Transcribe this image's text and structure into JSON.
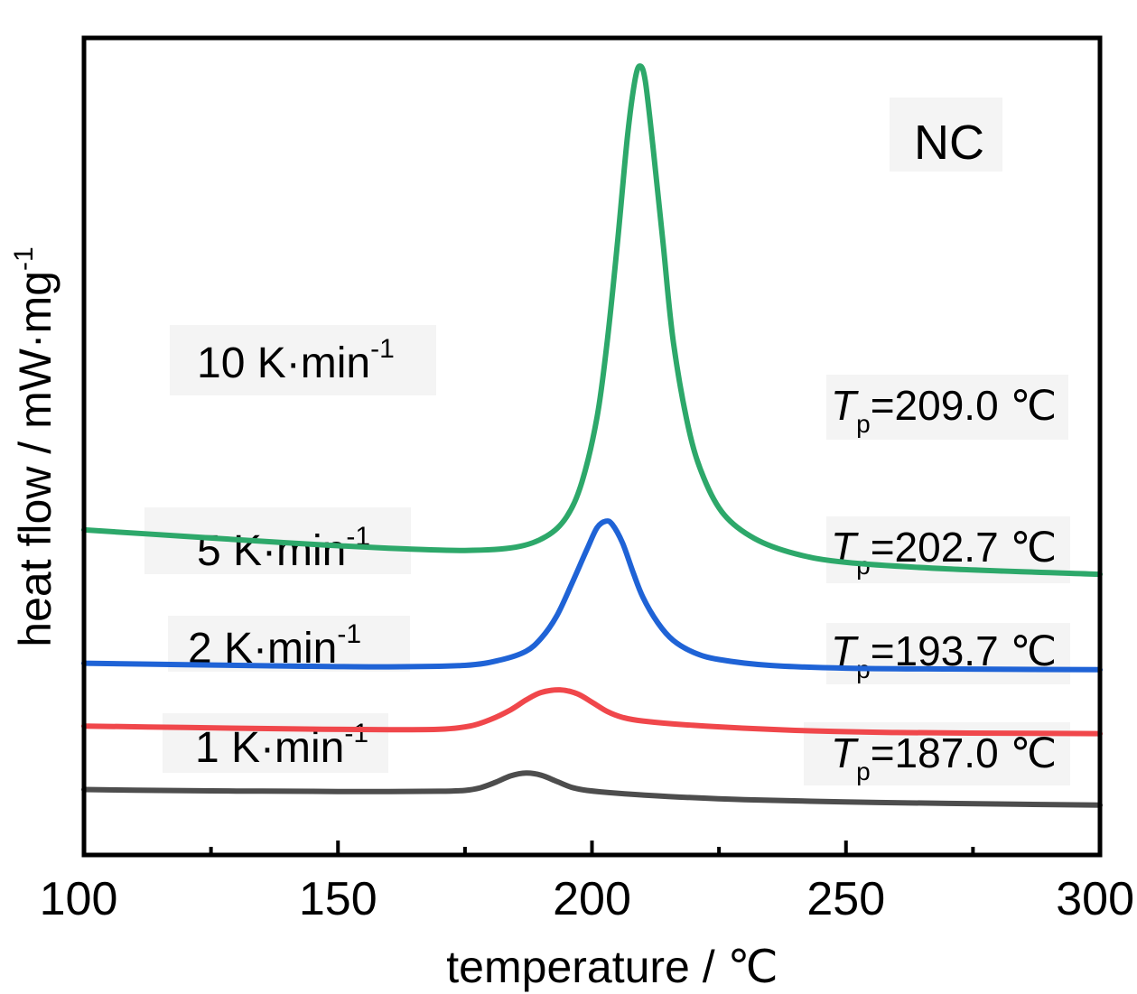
{
  "chart_data": {
    "type": "line",
    "panel_label": "NC",
    "xlabel": "temperature / ℃",
    "ylabel_main": "heat flow / mW·mg",
    "ylabel_sup": "-1",
    "xlim": [
      100,
      300
    ],
    "xticks": [
      "100",
      "150",
      "200",
      "250",
      "300"
    ],
    "x_minor_ticks": [
      125,
      175,
      225,
      275
    ],
    "y_ticks_shown": false,
    "grid": false,
    "legend": "none",
    "series": [
      {
        "key": "1",
        "label_main": "1 K·min",
        "label_sup": "-1",
        "tp_symbol": "T",
        "tp_sub": "p",
        "tp_value": "=187.0 ℃",
        "color": "#4d4d4d",
        "x": [
          100,
          110,
          120,
          130,
          140,
          150,
          160,
          170,
          175,
          178,
          181,
          184,
          187,
          190,
          193,
          196,
          199,
          205,
          215,
          230,
          250,
          270,
          300
        ],
        "y": [
          0.82,
          0.79,
          0.77,
          0.75,
          0.74,
          0.73,
          0.73,
          0.74,
          0.78,
          0.9,
          1.15,
          1.45,
          1.58,
          1.48,
          1.2,
          0.92,
          0.78,
          0.65,
          0.5,
          0.35,
          0.25,
          0.18,
          0.1
        ]
      },
      {
        "key": "2",
        "label_main": "2 K·min",
        "label_sup": "-1",
        "tp_symbol": "T",
        "tp_sub": "p",
        "tp_value": "=193.7 ℃",
        "color": "#f0474b",
        "x": [
          100,
          120,
          140,
          160,
          170,
          176,
          180,
          184,
          187,
          190,
          193.7,
          197,
          200,
          203,
          206,
          210,
          220,
          240,
          260,
          280,
          300
        ],
        "y": [
          3.75,
          3.68,
          3.62,
          3.58,
          3.6,
          3.75,
          4.05,
          4.5,
          4.95,
          5.3,
          5.42,
          5.25,
          4.85,
          4.42,
          4.15,
          3.98,
          3.78,
          3.55,
          3.45,
          3.42,
          3.4
        ]
      },
      {
        "key": "5",
        "label_main": "5 K·min",
        "label_sup": "-1",
        "tp_symbol": "T",
        "tp_sub": "p",
        "tp_value": "=202.7 ℃",
        "color": "#1f63d6",
        "x": [
          100,
          120,
          140,
          160,
          175,
          182,
          187,
          190,
          193,
          196,
          199,
          201,
          202.7,
          204,
          206,
          208,
          210,
          213,
          216,
          220,
          225,
          235,
          250,
          270,
          300
        ],
        "y": [
          6.65,
          6.58,
          6.52,
          6.48,
          6.55,
          6.8,
          7.2,
          7.8,
          8.8,
          10.3,
          11.9,
          12.9,
          13.2,
          13.05,
          12.2,
          10.9,
          9.7,
          8.5,
          7.7,
          7.15,
          6.82,
          6.55,
          6.42,
          6.38,
          6.35
        ]
      },
      {
        "key": "10",
        "label_main": "10 K·min",
        "label_sup": "-1",
        "tp_symbol": "T",
        "tp_sub": "p",
        "tp_value": "=209.0 ℃",
        "color": "#2da86a",
        "x": [
          100,
          120,
          140,
          160,
          175,
          185,
          191,
          195,
          198,
          201,
          203,
          205,
          207,
          208.5,
          209.5,
          210.5,
          212,
          214,
          216,
          219,
          222,
          226,
          232,
          240,
          250,
          270,
          300
        ],
        "y": [
          12.8,
          12.5,
          12.2,
          11.95,
          11.85,
          12.0,
          12.5,
          13.4,
          15.0,
          18.0,
          21.5,
          26.0,
          31.0,
          33.6,
          34.2,
          33.5,
          30.5,
          26.0,
          21.5,
          17.5,
          15.2,
          13.5,
          12.4,
          11.7,
          11.3,
          11.0,
          10.75
        ]
      }
    ]
  }
}
